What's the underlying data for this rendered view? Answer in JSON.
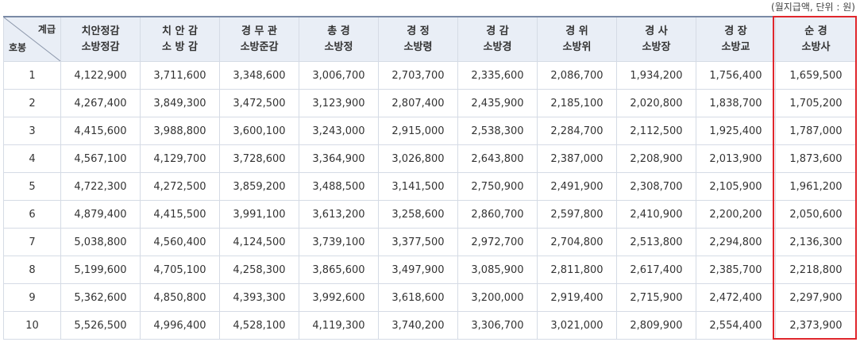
{
  "unit_note": "(월지급액, 단위 : 원)",
  "corner": {
    "top": "계급",
    "bottom": "호봉"
  },
  "columns": [
    {
      "line1": "치안정감",
      "line2": "소방정감"
    },
    {
      "line1": "치 안 감",
      "line2": "소 방 감"
    },
    {
      "line1": "경 무 관",
      "line2": "소방준감"
    },
    {
      "line1": "총 경",
      "line2": "소방정"
    },
    {
      "line1": "경 정",
      "line2": "소방령"
    },
    {
      "line1": "경 감",
      "line2": "소방경"
    },
    {
      "line1": "경 위",
      "line2": "소방위"
    },
    {
      "line1": "경 사",
      "line2": "소방장"
    },
    {
      "line1": "경 장",
      "line2": "소방교"
    },
    {
      "line1": "순 경",
      "line2": "소방사"
    }
  ],
  "rows": [
    {
      "step": "1",
      "values": [
        "4,122,900",
        "3,711,600",
        "3,348,600",
        "3,006,700",
        "2,703,700",
        "2,335,600",
        "2,086,700",
        "1,934,200",
        "1,756,400",
        "1,659,500"
      ]
    },
    {
      "step": "2",
      "values": [
        "4,267,400",
        "3,849,300",
        "3,472,500",
        "3,123,900",
        "2,807,400",
        "2,435,900",
        "2,185,100",
        "2,020,800",
        "1,838,700",
        "1,705,200"
      ]
    },
    {
      "step": "3",
      "values": [
        "4,415,600",
        "3,988,800",
        "3,600,100",
        "3,243,000",
        "2,915,000",
        "2,538,300",
        "2,284,700",
        "2,112,500",
        "1,925,400",
        "1,787,000"
      ]
    },
    {
      "step": "4",
      "values": [
        "4,567,100",
        "4,129,700",
        "3,728,600",
        "3,364,900",
        "3,026,800",
        "2,643,800",
        "2,387,000",
        "2,208,900",
        "2,013,900",
        "1,873,600"
      ]
    },
    {
      "step": "5",
      "values": [
        "4,722,300",
        "4,272,500",
        "3,859,200",
        "3,488,500",
        "3,141,500",
        "2,750,900",
        "2,491,900",
        "2,308,700",
        "2,105,900",
        "1,961,200"
      ]
    },
    {
      "step": "6",
      "values": [
        "4,879,400",
        "4,415,500",
        "3,991,100",
        "3,613,200",
        "3,258,600",
        "2,860,700",
        "2,597,800",
        "2,410,900",
        "2,200,200",
        "2,050,600"
      ]
    },
    {
      "step": "7",
      "values": [
        "5,038,800",
        "4,560,400",
        "4,124,500",
        "3,739,100",
        "3,377,500",
        "2,972,700",
        "2,704,800",
        "2,513,800",
        "2,294,800",
        "2,136,300"
      ]
    },
    {
      "step": "8",
      "values": [
        "5,199,600",
        "4,705,100",
        "4,258,300",
        "3,865,600",
        "3,497,900",
        "3,085,900",
        "2,811,800",
        "2,617,400",
        "2,385,700",
        "2,218,800"
      ]
    },
    {
      "step": "9",
      "values": [
        "5,362,600",
        "4,850,800",
        "4,393,300",
        "3,992,600",
        "3,618,600",
        "3,200,000",
        "2,919,400",
        "2,715,900",
        "2,472,400",
        "2,297,900"
      ]
    },
    {
      "step": "10",
      "values": [
        "5,526,500",
        "4,996,400",
        "4,528,100",
        "4,119,300",
        "3,740,200",
        "3,306,700",
        "3,021,000",
        "2,809,900",
        "2,554,400",
        "2,373,900"
      ]
    }
  ],
  "highlight_color": "#e0262c"
}
